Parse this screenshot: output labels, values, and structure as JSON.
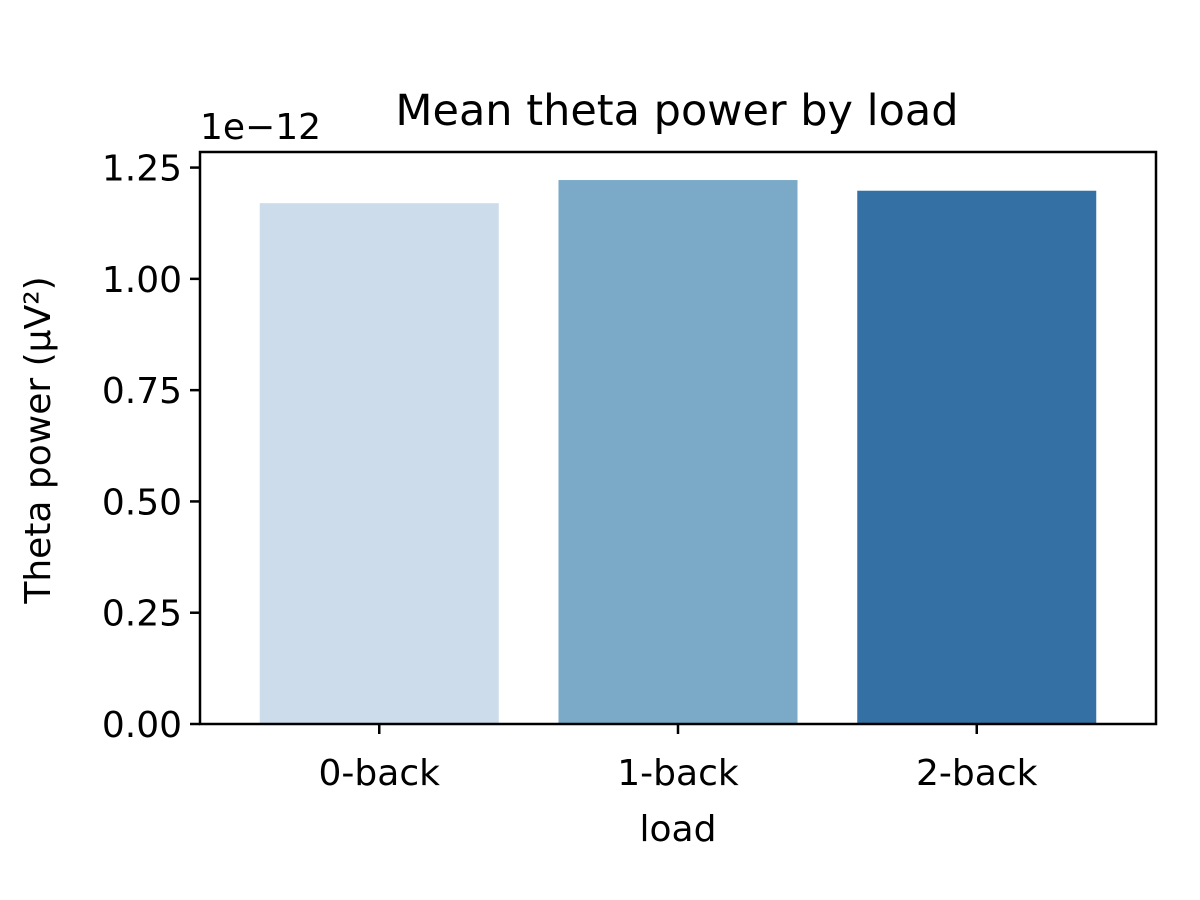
{
  "chart_data": {
    "type": "bar",
    "title": "Mean theta power by load",
    "xlabel": "load",
    "ylabel": "Theta power (µV²)",
    "y_offset_label": "1e−12",
    "y_scale_exponent": -12,
    "categories": [
      "0-back",
      "1-back",
      "2-back"
    ],
    "values": [
      1.17e-12,
      1.222e-12,
      1.198e-12
    ],
    "colors": [
      "#ccdcea",
      "#7aaac8",
      "#3470a3"
    ],
    "ylim": [
      0,
      1.285e-12
    ],
    "y_ticks": [
      0,
      2.5e-13,
      5e-13,
      7.5e-13,
      1e-12,
      1.25e-12
    ],
    "y_tick_labels": [
      "0.00",
      "0.25",
      "0.50",
      "0.75",
      "1.00",
      "1.25"
    ],
    "grid": false,
    "legend": "none"
  }
}
